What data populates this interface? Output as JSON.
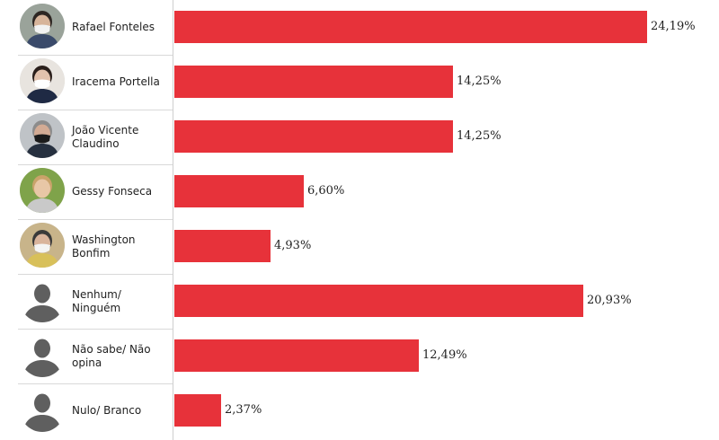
{
  "chart_data": {
    "type": "bar",
    "orientation": "horizontal",
    "categories": [
      "Rafael Fonteles",
      "Iracema Portella",
      "João Vicente Claudino",
      "Gessy Fonseca",
      "Washington Bonfim",
      "Nenhum/ Ninguém",
      "Não sabe/ Não opina",
      "Nulo/ Branco"
    ],
    "values": [
      24.19,
      14.25,
      14.25,
      6.6,
      4.93,
      20.93,
      12.49,
      2.37
    ],
    "value_labels": [
      "24,19%",
      "14,25%",
      "14,25%",
      "6,60%",
      "4,93%",
      "20,93%",
      "12,49%",
      "2,37%"
    ],
    "avatars": [
      "photo",
      "photo",
      "photo",
      "photo",
      "photo",
      "placeholder",
      "placeholder",
      "placeholder"
    ],
    "xlim": [
      0,
      24.19
    ],
    "bar_color": "#e7323a",
    "grid": false,
    "legend": "none"
  }
}
